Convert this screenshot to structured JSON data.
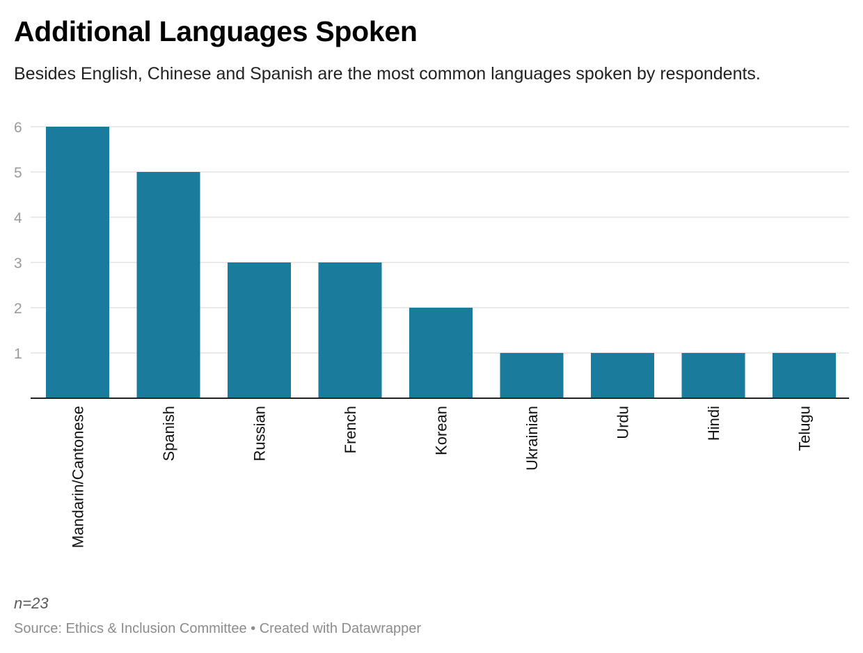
{
  "header": {
    "title": "Additional Languages Spoken",
    "subtitle": "Besides English, Chinese and Spanish are the most common languages spoken by respondents."
  },
  "chart_data": {
    "type": "bar",
    "title": "Additional Languages Spoken",
    "subtitle": "Besides English, Chinese and Spanish are the most common languages spoken by respondents.",
    "categories": [
      "Mandarin/Cantonese",
      "Spanish",
      "Russian",
      "French",
      "Korean",
      "Ukrainian",
      "Urdu",
      "Hindi",
      "Telugu"
    ],
    "values": [
      6,
      5,
      3,
      3,
      2,
      1,
      1,
      1,
      1
    ],
    "xlabel": "",
    "ylabel": "",
    "ylim": [
      0,
      6
    ],
    "yticks": [
      1,
      2,
      3,
      4,
      5,
      6
    ],
    "grid": true,
    "legend": "none",
    "bar_color": "#1a7b9c",
    "grid_color": "#e2e2e2",
    "tick_label_color": "#9a9a9a",
    "axis_color": "#222222"
  },
  "footer": {
    "note": "n=23",
    "source": "Source: Ethics & Inclusion Committee • Created with Datawrapper"
  }
}
